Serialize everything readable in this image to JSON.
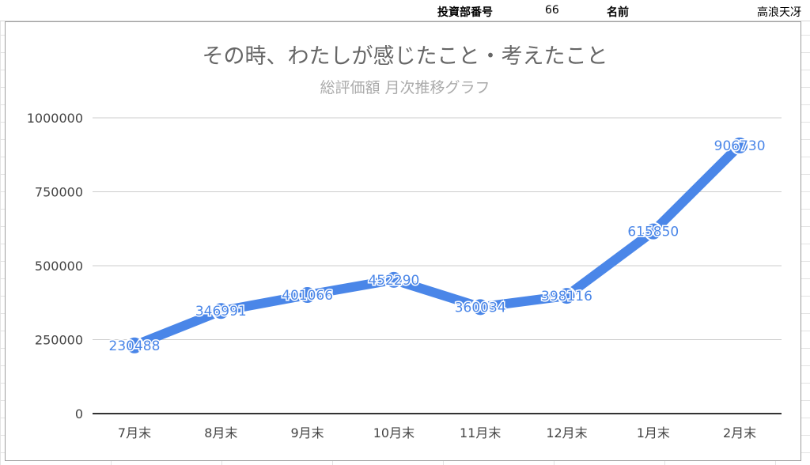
{
  "header": {
    "investor_id_label": "投資部番号",
    "investor_id_value": "66",
    "name_label": "名前",
    "name_value": "高浪天冴"
  },
  "colors": {
    "line": "#4a86e8",
    "title": "#666666",
    "subtitle": "#aaaaaa",
    "grid": "#cccccc",
    "axis": "#444444"
  },
  "chart_data": {
    "type": "line",
    "title": "その時、わたしが感じたこと・考えたこと",
    "subtitle": "総評価額 月次推移グラフ",
    "categories": [
      "7月末",
      "8月末",
      "9月末",
      "10月末",
      "11月末",
      "12月末",
      "1月末",
      "2月末"
    ],
    "series": [
      {
        "values": [
          230488,
          346991,
          401066,
          452290,
          360034,
          398116,
          615850,
          906730
        ]
      }
    ],
    "yticks": [
      0,
      250000,
      500000,
      750000,
      1000000
    ],
    "ylim": [
      0,
      1000000
    ],
    "grid": true,
    "legend": "none",
    "data_labels": true
  }
}
